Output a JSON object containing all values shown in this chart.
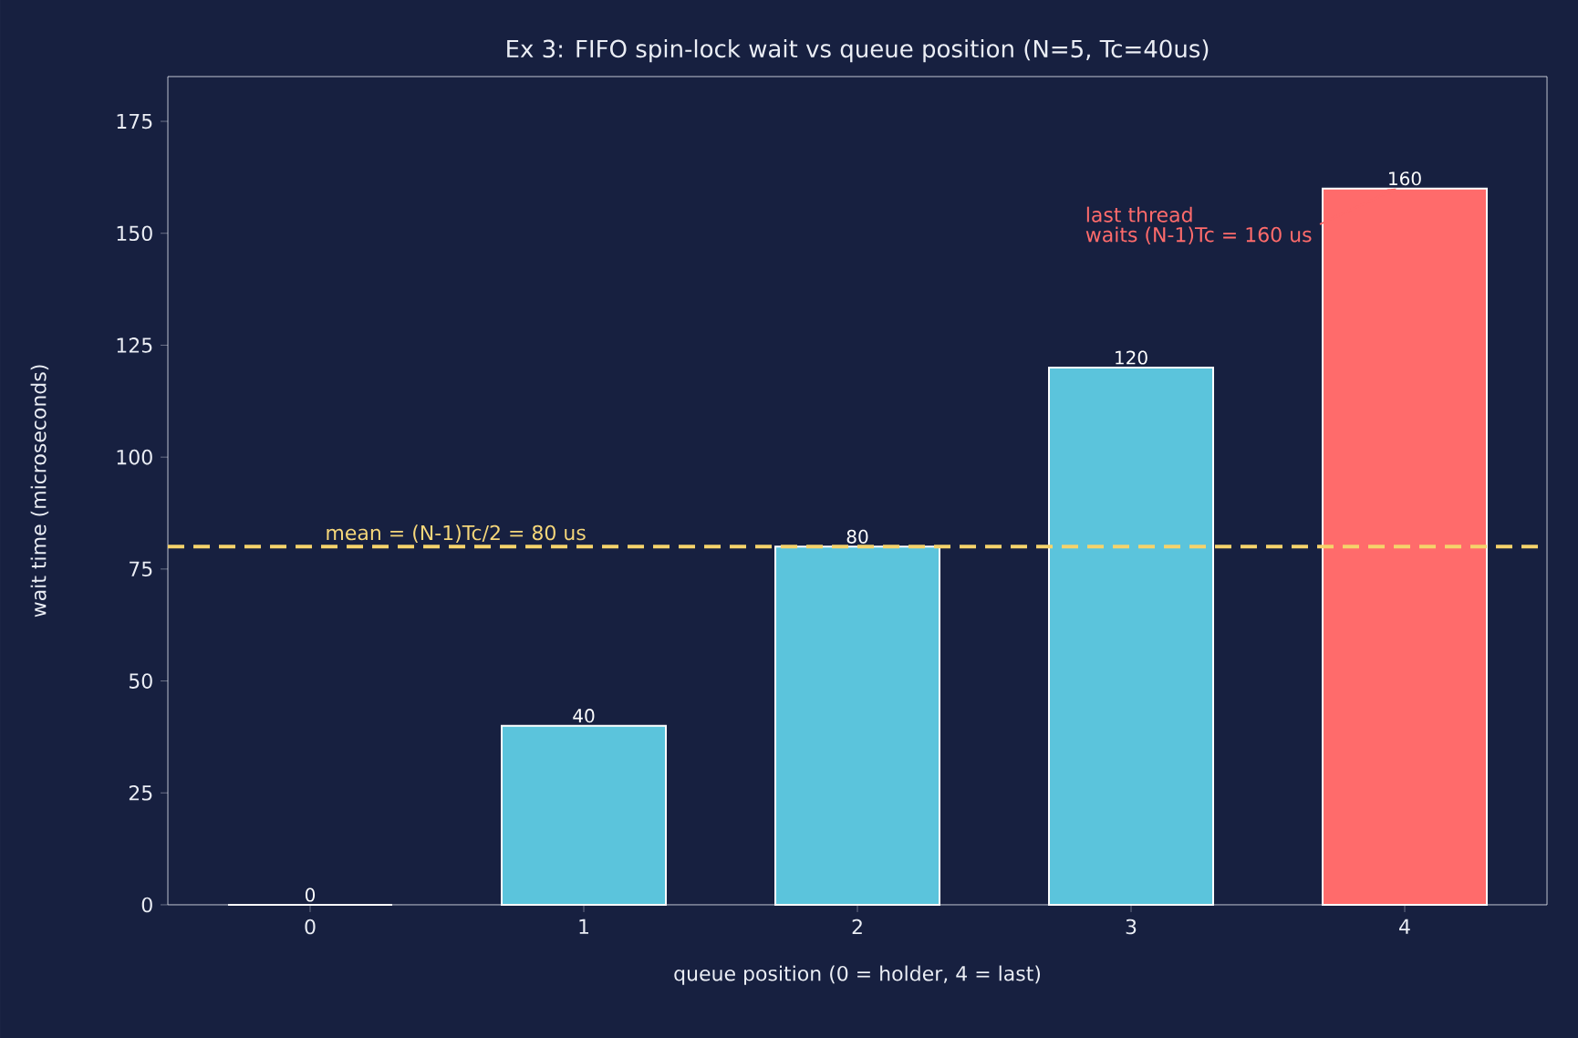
{
  "chart_data": {
    "type": "bar",
    "title": "Ex 3: FIFO spin-lock wait vs queue position (N=5, Tc=40us)",
    "xlabel": "queue position (0 = holder, 4 = last)",
    "ylabel": "wait time (microseconds)",
    "categories": [
      "0",
      "1",
      "2",
      "3",
      "4"
    ],
    "values": [
      0,
      40,
      80,
      120,
      160
    ],
    "colors": [
      "#5bc4dc",
      "#5bc4dc",
      "#5bc4dc",
      "#5bc4dc",
      "#ff6b6b"
    ],
    "ylim": [
      0,
      185
    ],
    "yticks": [
      0,
      25,
      50,
      75,
      100,
      125,
      150,
      175
    ],
    "data_labels": true,
    "grid": false,
    "ref_lines": [
      {
        "axis": "y",
        "value": 80,
        "label": "mean = (N-1)Tc/2 = 80 us",
        "color": "#f5d36b",
        "line_style": "dashed"
      }
    ],
    "annotations": [
      "last thread",
      {
        "text": "waits (N-1)Tc = 160 us",
        "x": "4",
        "y": 160
      }
    ]
  }
}
